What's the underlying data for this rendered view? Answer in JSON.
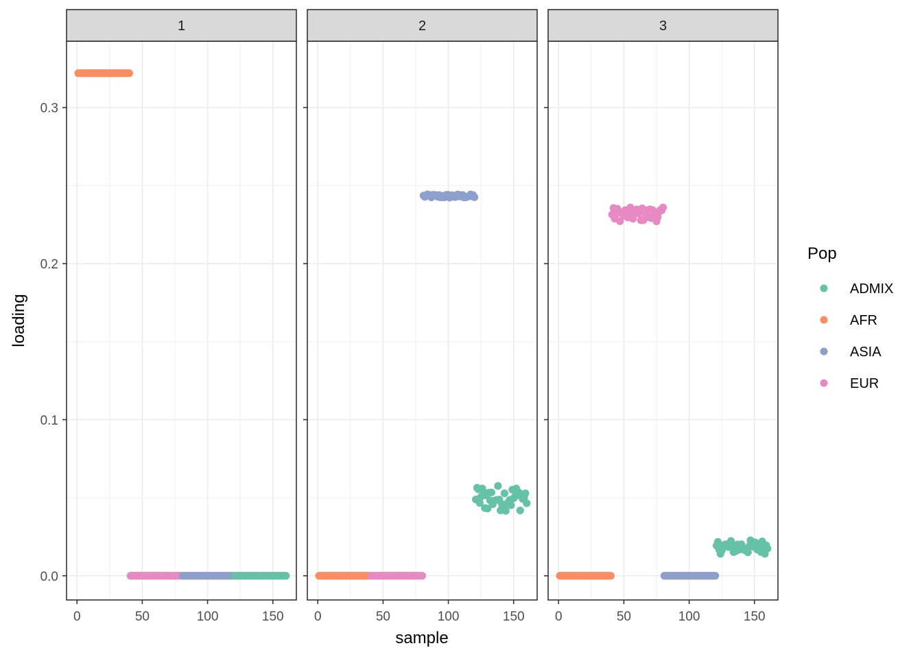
{
  "chart_data": {
    "type": "scatter",
    "facet_by": "component",
    "xlabel": "sample",
    "ylabel": "loading",
    "xlim": [
      -8,
      168
    ],
    "ylim": [
      -0.0155,
      0.3425
    ],
    "x_ticks": [
      0,
      50,
      100,
      150
    ],
    "y_ticks": [
      0.0,
      0.1,
      0.2,
      0.3
    ],
    "x_tick_labels": [
      "0",
      "50",
      "100",
      "150"
    ],
    "y_tick_labels": [
      "0.0",
      "0.1",
      "0.2",
      "0.3"
    ],
    "grid": true,
    "legend": {
      "title": "Pop",
      "placement": "right",
      "entries": [
        {
          "name": "ADMIX",
          "color": "#66C2A5"
        },
        {
          "name": "AFR",
          "color": "#FC8D62"
        },
        {
          "name": "ASIA",
          "color": "#8DA0CB"
        },
        {
          "name": "EUR",
          "color": "#E78AC3"
        }
      ]
    },
    "panels": [
      {
        "label": "1",
        "groups": [
          {
            "pop": "AFR",
            "x_range": [
              1,
              40
            ],
            "y": 0.322,
            "spread": 0.0
          },
          {
            "pop": "EUR",
            "x_range": [
              41,
              80
            ],
            "y": 0.0,
            "spread": 0.0
          },
          {
            "pop": "ASIA",
            "x_range": [
              81,
              120
            ],
            "y": 0.0,
            "spread": 0.0
          },
          {
            "pop": "ADMIX",
            "x_range": [
              121,
              160
            ],
            "y": 0.0,
            "spread": 0.0
          }
        ]
      },
      {
        "label": "2",
        "groups": [
          {
            "pop": "AFR",
            "x_range": [
              1,
              40
            ],
            "y": 0.0,
            "spread": 0.0
          },
          {
            "pop": "EUR",
            "x_range": [
              41,
              80
            ],
            "y": 0.0,
            "spread": 0.0
          },
          {
            "pop": "ASIA",
            "x_range": [
              81,
              120
            ],
            "y": 0.2432,
            "spread": 0.0012
          },
          {
            "pop": "ADMIX",
            "x_range": [
              121,
              160
            ],
            "y": 0.05,
            "spread": 0.0085
          }
        ]
      },
      {
        "label": "3",
        "groups": [
          {
            "pop": "AFR",
            "x_range": [
              1,
              40
            ],
            "y": 0.0,
            "spread": 0.0
          },
          {
            "pop": "EUR",
            "x_range": [
              41,
              80
            ],
            "y": 0.2315,
            "spread": 0.0045
          },
          {
            "pop": "ASIA",
            "x_range": [
              81,
              120
            ],
            "y": 0.0,
            "spread": 0.0
          },
          {
            "pop": "ADMIX",
            "x_range": [
              121,
              160
            ],
            "y": 0.0185,
            "spread": 0.0045
          }
        ]
      }
    ]
  }
}
